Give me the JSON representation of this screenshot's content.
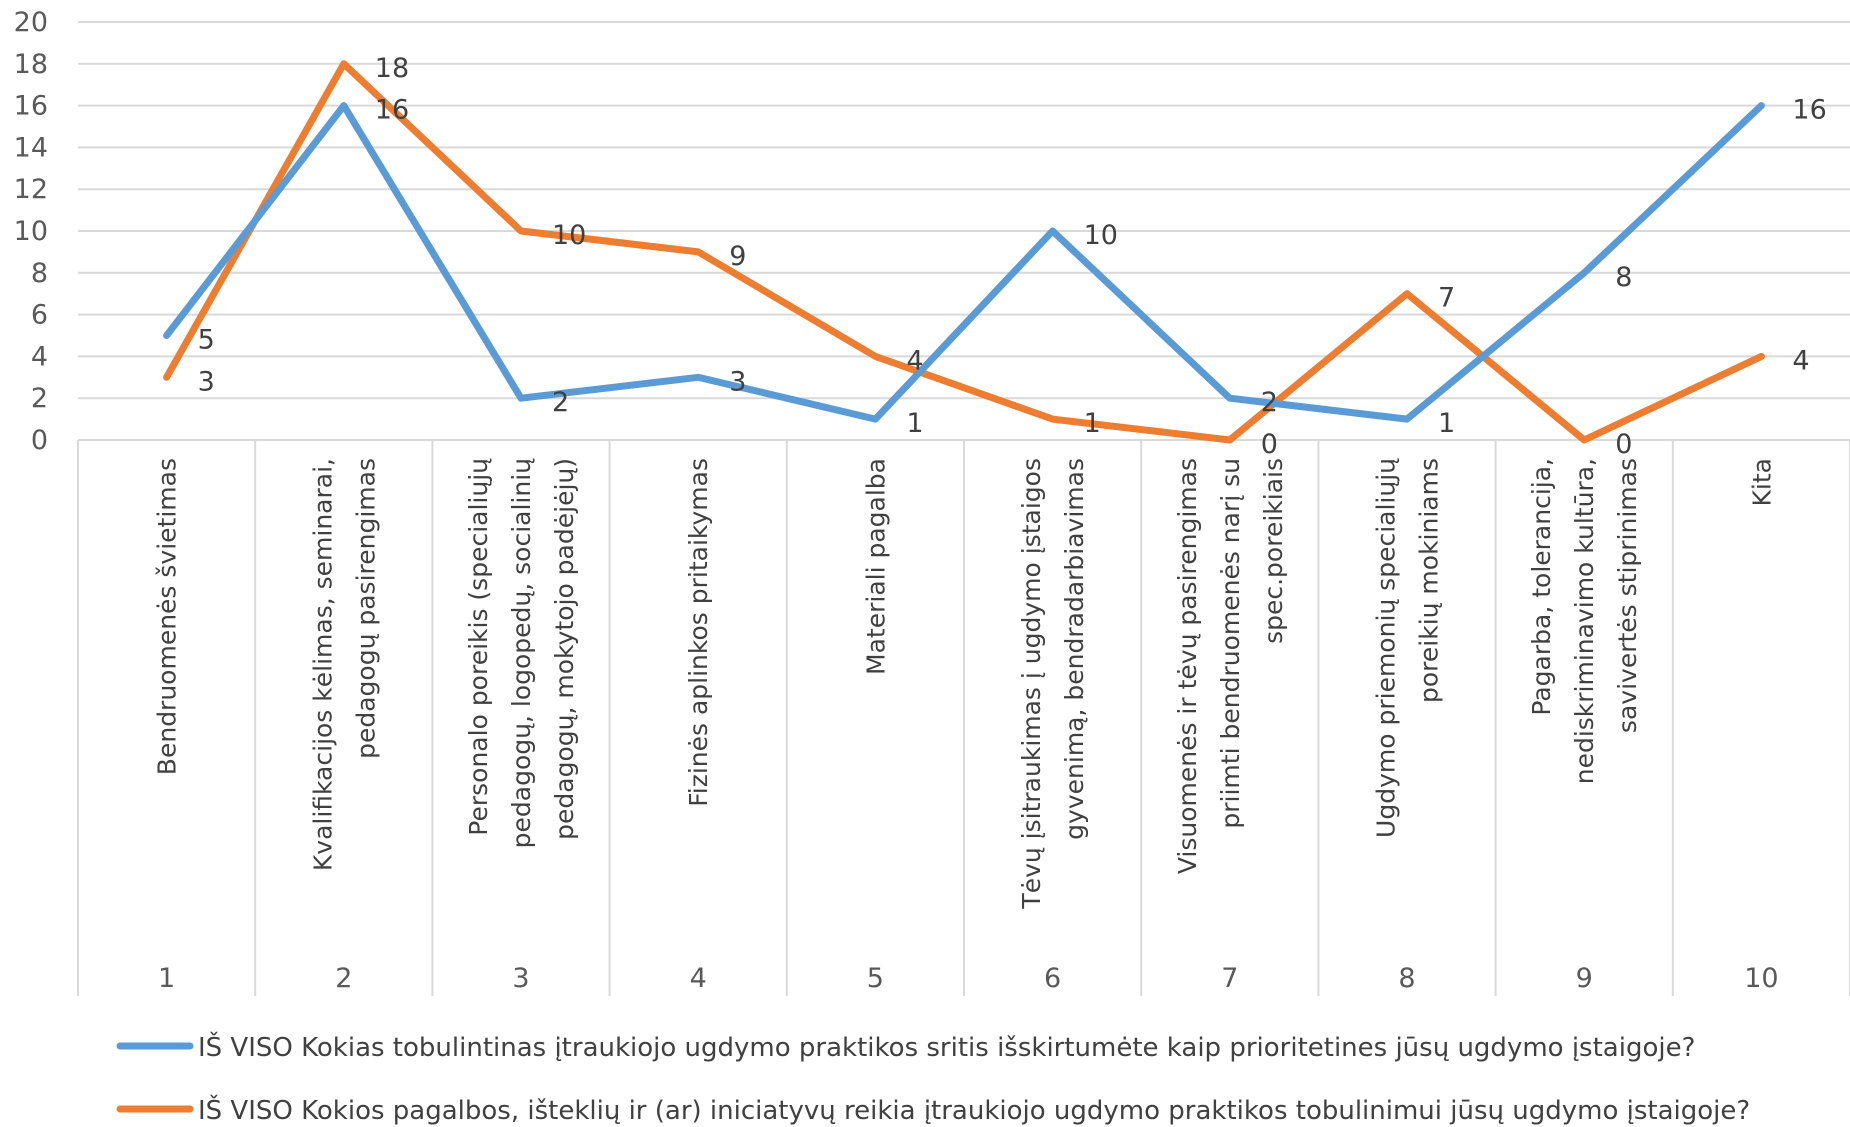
{
  "chart_data": {
    "type": "line",
    "x": [
      1,
      2,
      3,
      4,
      5,
      6,
      7,
      8,
      9,
      10
    ],
    "categories": [
      [
        "Bendruomenės švietimas"
      ],
      [
        "Kvalifikacijos kėlimas, seminarai,",
        "pedagogų pasirengimas"
      ],
      [
        "Personalo poreikis (specialiųjų",
        "pedagogų, logopedų, socialinių",
        "pedagogų, mokytojo padėjėjų)"
      ],
      [
        "Fizinės aplinkos pritaikymas"
      ],
      [
        "Materiali pagalba"
      ],
      [
        "Tėvų įsitraukimas į ugdymo įstaigos",
        "gyvenimą, bendradarbiavimas"
      ],
      [
        "Visuomenės ir tėvų pasirengimas",
        "priimti bendruomenės narį su",
        "spec.poreikiais"
      ],
      [
        "Ugdymo priemonių specialiųjų",
        "poreikių mokiniams"
      ],
      [
        "Pagarba, tolerancija,",
        "nediskriminavimo kultūra,",
        "savivertės stiprinimas"
      ],
      [
        "Kita"
      ]
    ],
    "series": [
      {
        "name": "IŠ VISO Kokias tobulintinas įtraukiojo ugdymo praktikos sritis išskirtumėte kaip prioritetines jūsų ugdymo įstaigoje?",
        "values": [
          5,
          16,
          2,
          3,
          1,
          10,
          2,
          1,
          8,
          16
        ],
        "color": "#5b9bd5"
      },
      {
        "name": "IŠ VISO Kokios pagalbos, išteklių ir (ar) iniciatyvų reikia įtraukiojo ugdymo praktikos tobulinimui jūsų ugdymo įstaigoje?",
        "values": [
          3,
          18,
          10,
          9,
          4,
          1,
          0,
          7,
          0,
          4
        ],
        "color": "#ed7d31"
      }
    ],
    "yticks": [
      0,
      2,
      4,
      6,
      8,
      10,
      12,
      14,
      16,
      18,
      20
    ],
    "ylim": [
      0,
      20
    ],
    "grid": true,
    "legend": "bottom"
  }
}
